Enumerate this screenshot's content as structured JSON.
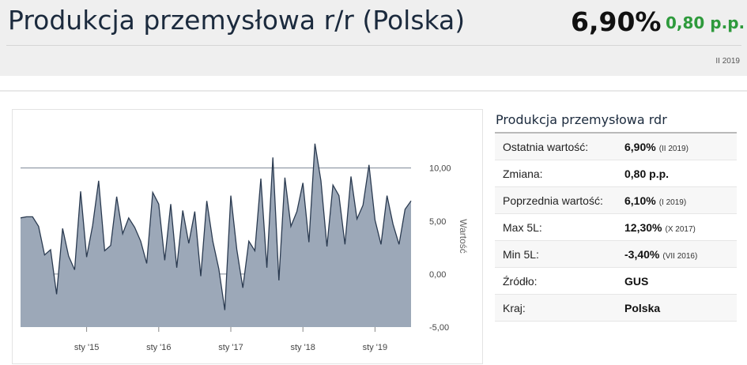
{
  "header": {
    "title": "Produkcja przemysłowa r/r (Polska)",
    "value": "6,90%",
    "change": "0,80 p.p.",
    "period": "II 2019"
  },
  "panel": {
    "title": "Produkcja przemysłowa rdr",
    "rows": [
      {
        "label": "Ostatnia wartość:",
        "value": "6,90%",
        "note": "(II 2019)"
      },
      {
        "label": "Zmiana:",
        "value": "0,80 p.p.",
        "note": ""
      },
      {
        "label": "Poprzednia wartość:",
        "value": "6,10%",
        "note": "(I 2019)"
      },
      {
        "label": "Max 5L:",
        "value": "12,30%",
        "note": "(X 2017)"
      },
      {
        "label": "Min 5L:",
        "value": "-3,40%",
        "note": "(VII 2016)"
      },
      {
        "label": "Źródło:",
        "value": "GUS",
        "note": ""
      },
      {
        "label": "Kraj:",
        "value": "Polska",
        "note": ""
      }
    ]
  },
  "colors": {
    "accent_green": "#2e9a3c",
    "area_fill": "#9ca8b8",
    "line": "#2a3a50"
  },
  "chart_data": {
    "type": "area",
    "ylabel": "Wartość",
    "ylim": [
      -5,
      14
    ],
    "yticks": [
      -5,
      0,
      5,
      10
    ],
    "ytick_labels": [
      "-5,00",
      "0,00",
      "5,00",
      "10,00"
    ],
    "gridlines": [
      0,
      10
    ],
    "xticks": [
      "sty '15",
      "sty '16",
      "sty '17",
      "sty '18",
      "sty '19"
    ],
    "series": [
      {
        "values": [
          5.3,
          5.4,
          5.4,
          4.5,
          1.8,
          2.3,
          -1.9,
          4.3,
          1.7,
          0.4,
          7.8,
          1.6,
          4.6,
          8.8,
          2.2,
          2.7,
          7.3,
          3.8,
          5.3,
          4.4,
          3.1,
          1.0,
          7.7,
          6.6,
          1.3,
          6.6,
          0.6,
          6.0,
          2.9,
          5.9,
          -0.2,
          6.9,
          3.1,
          0.5,
          -3.4,
          7.4,
          2.3,
          -1.3,
          3.1,
          2.2,
          9.0,
          0.6,
          11.0,
          -0.6,
          9.1,
          4.5,
          5.9,
          8.6,
          3.0,
          12.3,
          8.8,
          2.6,
          8.4,
          7.4,
          2.8,
          9.2,
          5.2,
          6.5,
          10.3,
          5.1,
          2.8,
          7.4,
          4.7,
          2.8,
          6.1,
          6.9
        ]
      }
    ]
  }
}
